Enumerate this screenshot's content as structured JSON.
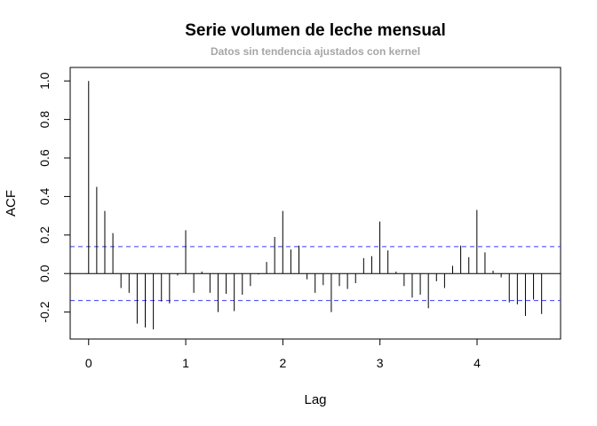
{
  "chart_data": {
    "type": "bar",
    "title": "Serie volumen de leche mensual",
    "subtitle": "Datos sin tendencia ajustados con kernel",
    "xlabel": "Lag",
    "ylabel": "ACF",
    "xlim": [
      -0.19,
      4.86
    ],
    "ylim": [
      -0.34,
      1.07
    ],
    "xticks": [
      0,
      1,
      2,
      3,
      4
    ],
    "xtick_labels": [
      "0",
      "1",
      "2",
      "3",
      "4"
    ],
    "yticks": [
      -0.2,
      0.0,
      0.2,
      0.4,
      0.6,
      0.8,
      1.0
    ],
    "ytick_labels": [
      "-0.2",
      "0.0",
      "0.2",
      "0.4",
      "0.6",
      "0.8",
      "1.0"
    ],
    "confidence_limits": [
      0.14,
      -0.14
    ],
    "confidence_color": "#3b3bff",
    "grid": false,
    "lag_step": 0.0833,
    "acf": [
      1.0,
      0.45,
      0.325,
      0.21,
      -0.075,
      -0.1,
      -0.26,
      -0.28,
      -0.29,
      -0.145,
      -0.155,
      -0.01,
      0.225,
      -0.1,
      0.01,
      -0.1,
      -0.2,
      -0.105,
      -0.195,
      -0.11,
      -0.065,
      -0.005,
      0.06,
      0.19,
      0.325,
      0.125,
      0.145,
      -0.03,
      -0.1,
      -0.06,
      -0.2,
      -0.065,
      -0.08,
      -0.05,
      0.08,
      0.09,
      0.27,
      0.12,
      0.01,
      -0.065,
      -0.125,
      -0.11,
      -0.18,
      -0.04,
      -0.075,
      0.04,
      0.145,
      0.085,
      0.33,
      0.11,
      0.015,
      -0.02,
      -0.15,
      -0.16,
      -0.22,
      -0.135,
      -0.21
    ]
  }
}
